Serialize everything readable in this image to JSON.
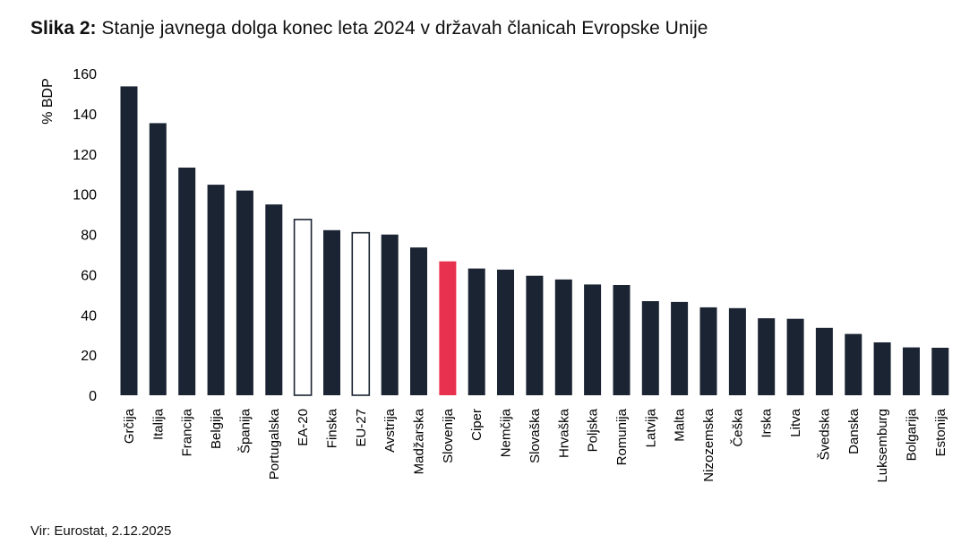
{
  "title": {
    "prefix": "Slika 2:",
    "text": "Stanje javnega dolga konec leta 2024 v državah članicah Evropske Unije"
  },
  "source": "Vir: Eurostat, 2.12.2025",
  "colors": {
    "bar": "#1b2433",
    "highlight": "#e8304f",
    "aggregate_fill": "#ffffff",
    "aggregate_stroke": "#1b2433"
  },
  "chart_data": {
    "type": "bar",
    "title": "Stanje javnega dolga konec leta 2024 v državah članicah Evropske Unije",
    "xlabel": "",
    "ylabel": "% BDP",
    "ylim": [
      0,
      160
    ],
    "yticks": [
      0,
      20,
      40,
      60,
      80,
      100,
      120,
      140,
      160
    ],
    "grid": false,
    "legend": "none",
    "categories": [
      "Grčija",
      "Italija",
      "Francija",
      "Belgija",
      "Španija",
      "Portugalska",
      "EA-20",
      "Finska",
      "EU-27",
      "Avstrija",
      "Madžarska",
      "Slovenija",
      "Ciper",
      "Nemčija",
      "Slovaška",
      "Hrvaška",
      "Poljska",
      "Romunija",
      "Latvija",
      "Malta",
      "Nizozemska",
      "Češka",
      "Irska",
      "Litva",
      "Švedska",
      "Danska",
      "Luksemburg",
      "Bolgarija",
      "Estonija"
    ],
    "values": [
      153.6,
      135.3,
      113.2,
      104.7,
      101.8,
      94.9,
      87.4,
      82.1,
      80.8,
      79.9,
      73.5,
      66.6,
      63.0,
      62.5,
      59.4,
      57.6,
      55.1,
      54.8,
      46.8,
      46.4,
      43.7,
      43.3,
      38.3,
      38.0,
      33.5,
      30.5,
      26.3,
      23.8,
      23.6
    ],
    "styles": [
      "dark",
      "dark",
      "dark",
      "dark",
      "dark",
      "dark",
      "outline",
      "dark",
      "outline",
      "dark",
      "dark",
      "highlight",
      "dark",
      "dark",
      "dark",
      "dark",
      "dark",
      "dark",
      "dark",
      "dark",
      "dark",
      "dark",
      "dark",
      "dark",
      "dark",
      "dark",
      "dark",
      "dark",
      "dark"
    ]
  }
}
